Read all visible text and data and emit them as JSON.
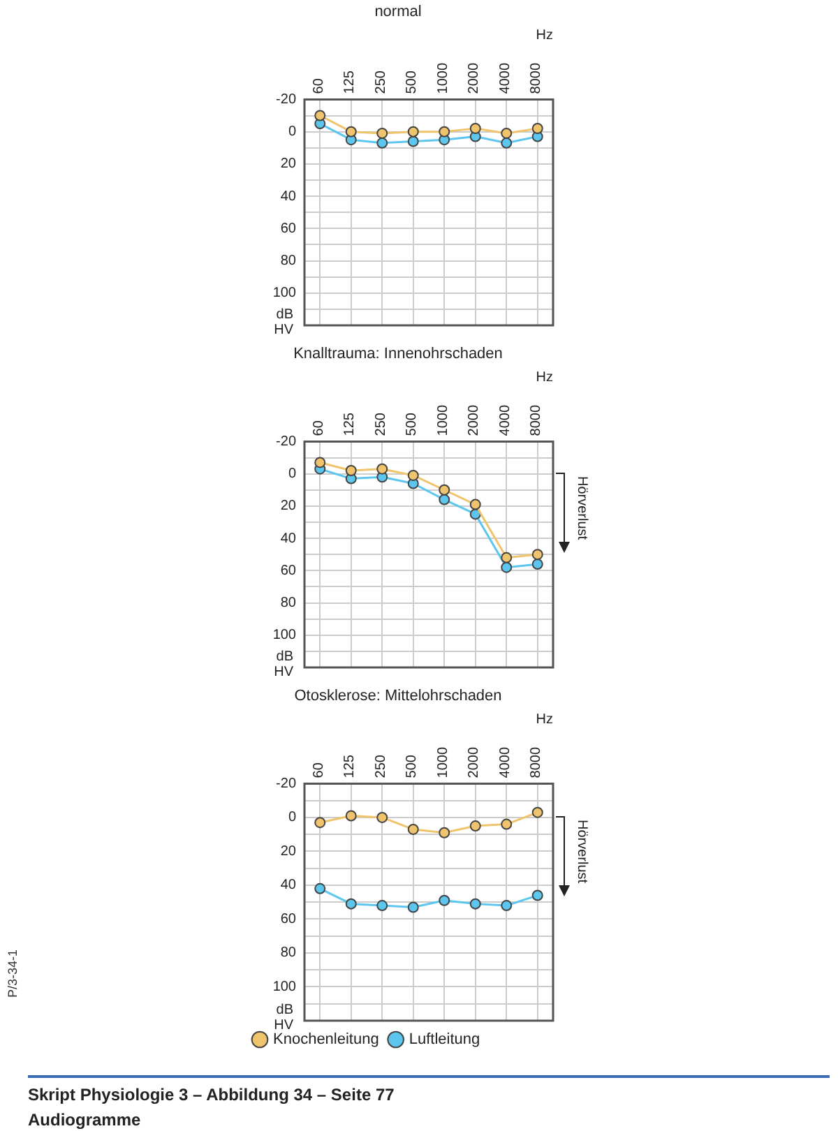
{
  "chart_data": [
    {
      "type": "line",
      "title": "normal",
      "xlabel": "Hz",
      "ylabel": "dB HV",
      "categories": [
        "60",
        "125",
        "250",
        "500",
        "1000",
        "2000",
        "4000",
        "8000"
      ],
      "series": [
        {
          "color": "#f0c36d",
          "values": [
            -10,
            0,
            1,
            0,
            0,
            -2,
            1,
            -2
          ]
        },
        {
          "color": "#5cc6ee",
          "values": [
            -5,
            5,
            7,
            6,
            5,
            3,
            7,
            3
          ]
        }
      ],
      "ylim": [
        120,
        -20
      ],
      "yticks": [
        -20,
        {
          "value": -10,
          "label": null
        },
        0,
        {
          "value": 10,
          "label": null
        },
        20,
        {
          "value": 30,
          "label": null
        },
        40,
        {
          "value": 50,
          "label": null
        },
        60,
        {
          "value": 70,
          "label": null
        },
        80,
        {
          "value": 90,
          "label": null
        },
        100,
        {
          "value": 110,
          "label": null
        },
        {
          "value": 120,
          "label": null
        }
      ],
      "grid": true,
      "legend": false,
      "marker": "circle"
    },
    {
      "type": "line",
      "title": "Knalltrauma: Innenohrschaden",
      "xlabel": "Hz",
      "ylabel": "dB HV",
      "annotations": [
        "Hörverlust"
      ],
      "categories": [
        "60",
        "125",
        "250",
        "500",
        "1000",
        "2000",
        "4000",
        "8000"
      ],
      "series": [
        {
          "color": "#f0c36d",
          "values": [
            -7,
            -2,
            -3,
            1,
            10,
            19,
            52,
            50
          ]
        },
        {
          "color": "#5cc6ee",
          "values": [
            -3,
            3,
            2,
            6,
            16,
            25,
            58,
            56
          ]
        }
      ],
      "ylim": [
        120,
        -20
      ],
      "yticks": [
        -20,
        {
          "value": -10,
          "label": null
        },
        0,
        {
          "value": 10,
          "label": null
        },
        20,
        {
          "value": 30,
          "label": null
        },
        40,
        {
          "value": 50,
          "label": null
        },
        60,
        {
          "value": 70,
          "label": null
        },
        80,
        {
          "value": 90,
          "label": null
        },
        100,
        {
          "value": 110,
          "label": null
        },
        {
          "value": 120,
          "label": null
        }
      ],
      "grid": true,
      "legend": false,
      "marker": "circle"
    },
    {
      "type": "line",
      "title": "Otosklerose: Mittelohrschaden",
      "xlabel": "Hz",
      "ylabel": "dB HV",
      "annotations": [
        "Hörverlust"
      ],
      "categories": [
        "60",
        "125",
        "250",
        "500",
        "1000",
        "2000",
        "4000",
        "8000"
      ],
      "series": [
        {
          "name": "Knochenleitung",
          "color": "#f0c36d",
          "values": [
            3,
            -1,
            0,
            7,
            9,
            5,
            4,
            -3
          ]
        },
        {
          "name": "Luftleitung",
          "color": "#5cc6ee",
          "values": [
            42,
            51,
            52,
            53,
            49,
            51,
            52,
            46
          ]
        }
      ],
      "ylim": [
        120,
        -20
      ],
      "yticks": [
        -20,
        {
          "value": -10,
          "label": null
        },
        0,
        {
          "value": 10,
          "label": null
        },
        20,
        {
          "value": 30,
          "label": null
        },
        40,
        {
          "value": 50,
          "label": null
        },
        60,
        {
          "value": 70,
          "label": null
        },
        80,
        {
          "value": 90,
          "label": null
        },
        100,
        {
          "value": 110,
          "label": null
        },
        {
          "value": 120,
          "label": null
        }
      ],
      "grid": true,
      "legend": "bottom left",
      "marker": "circle"
    },
    {
      "type": "other",
      "title": "Skript Physiologie 3 – Abbildung 34 – Seite 77",
      "subtitle": "Audiogramme",
      "annotations": [
        "P/3-34-1"
      ]
    }
  ]
}
